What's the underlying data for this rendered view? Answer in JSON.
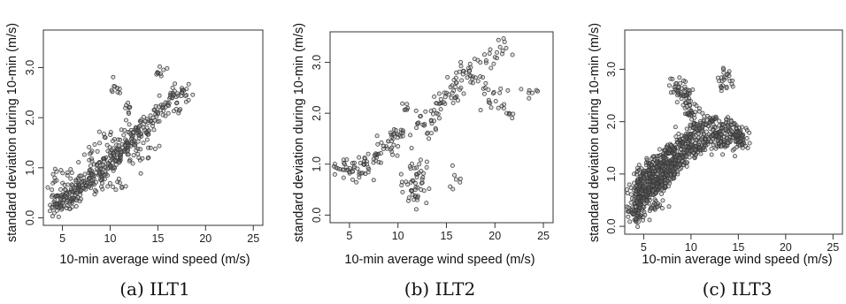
{
  "chart_data": [
    {
      "type": "scatter",
      "caption": "(a) ILT1",
      "xlabel": "10-min average wind speed (m/s)",
      "ylabel": "standard deviation during 10-min (m/s)",
      "xlim": [
        3,
        26
      ],
      "ylim": [
        -0.15,
        3.75
      ],
      "xticks": [
        5,
        10,
        15,
        20,
        25
      ],
      "yticks": [
        0.0,
        1.0,
        2.0,
        3.0
      ],
      "ytick_labels": [
        "0.0",
        "1.0",
        "2.0",
        "3.0"
      ],
      "series": [
        {
          "marker": "open-circle",
          "points": [
            [
              4.0,
              0.2
            ],
            [
              4.2,
              0.35
            ],
            [
              4.5,
              0.28
            ],
            [
              4.8,
              0.4
            ],
            [
              5.0,
              0.3
            ],
            [
              5.2,
              0.45
            ],
            [
              5.5,
              0.35
            ],
            [
              5.8,
              0.5
            ],
            [
              6.0,
              0.4
            ],
            [
              6.2,
              0.55
            ],
            [
              6.5,
              0.5
            ],
            [
              6.8,
              0.62
            ],
            [
              7.0,
              0.55
            ],
            [
              7.3,
              0.7
            ],
            [
              7.5,
              0.65
            ],
            [
              7.8,
              0.8
            ],
            [
              8.0,
              0.7
            ],
            [
              8.3,
              0.85
            ],
            [
              8.5,
              0.9
            ],
            [
              8.8,
              0.95
            ],
            [
              9.0,
              0.85
            ],
            [
              9.3,
              1.05
            ],
            [
              9.5,
              1.0
            ],
            [
              9.8,
              1.1
            ],
            [
              10.0,
              1.05
            ],
            [
              10.3,
              1.2
            ],
            [
              10.5,
              1.15
            ],
            [
              10.8,
              1.3
            ],
            [
              11.0,
              1.25
            ],
            [
              11.3,
              1.4
            ],
            [
              11.5,
              1.35
            ],
            [
              11.8,
              1.5
            ],
            [
              12.0,
              1.45
            ],
            [
              12.3,
              1.6
            ],
            [
              12.5,
              1.55
            ],
            [
              12.8,
              1.7
            ],
            [
              13.0,
              1.65
            ],
            [
              13.5,
              1.8
            ],
            [
              14.0,
              1.9
            ],
            [
              14.5,
              2.0
            ],
            [
              15.0,
              2.1
            ],
            [
              15.5,
              2.2
            ],
            [
              16.0,
              2.3
            ],
            [
              16.5,
              2.4
            ],
            [
              17.0,
              2.3
            ],
            [
              17.5,
              2.5
            ],
            [
              18.0,
              2.45
            ],
            [
              15.0,
              2.9
            ],
            [
              10.5,
              2.62
            ],
            [
              9.5,
              1.6
            ],
            [
              11.0,
              0.7
            ],
            [
              13.0,
              1.2
            ],
            [
              8.0,
              1.3
            ],
            [
              12.0,
              2.2
            ],
            [
              14.0,
              1.4
            ],
            [
              6.0,
              0.9
            ],
            [
              4.2,
              0.8
            ]
          ]
        }
      ]
    },
    {
      "type": "scatter",
      "caption": "(b) ILT2",
      "xlabel": "10-min average wind speed (m/s)",
      "ylabel": "standard deviation during 10-min (m/s)",
      "xlim": [
        3,
        26
      ],
      "ylim": [
        -0.15,
        3.6
      ],
      "xticks": [
        5,
        10,
        15,
        20,
        25
      ],
      "yticks": [
        0.0,
        1.0,
        2.0,
        3.0
      ],
      "ytick_labels": [
        "0.0",
        "1.0",
        "2.0",
        "3.0"
      ],
      "series": [
        {
          "marker": "open-circle",
          "points": [
            [
              4.0,
              0.9
            ],
            [
              4.5,
              1.0
            ],
            [
              5.0,
              0.85
            ],
            [
              5.5,
              0.95
            ],
            [
              6.0,
              0.8
            ],
            [
              6.5,
              1.05
            ],
            [
              7.0,
              0.9
            ],
            [
              7.5,
              1.1
            ],
            [
              8.0,
              1.2
            ],
            [
              8.5,
              1.3
            ],
            [
              9.0,
              1.45
            ],
            [
              9.5,
              1.5
            ],
            [
              10.0,
              1.35
            ],
            [
              10.5,
              1.55
            ],
            [
              11.0,
              0.6
            ],
            [
              11.5,
              0.4
            ],
            [
              11.8,
              0.5
            ],
            [
              12.0,
              0.8
            ],
            [
              12.2,
              1.0
            ],
            [
              12.5,
              0.7
            ],
            [
              13.0,
              1.6
            ],
            [
              13.5,
              1.8
            ],
            [
              14.0,
              2.0
            ],
            [
              14.5,
              2.2
            ],
            [
              15.0,
              2.4
            ],
            [
              15.5,
              2.3
            ],
            [
              16.0,
              2.6
            ],
            [
              16.5,
              2.5
            ],
            [
              17.0,
              2.8
            ],
            [
              17.5,
              2.9
            ],
            [
              18.0,
              2.7
            ],
            [
              18.5,
              3.0
            ],
            [
              19.0,
              2.5
            ],
            [
              19.5,
              2.2
            ],
            [
              20.0,
              3.1
            ],
            [
              20.5,
              2.4
            ],
            [
              21.0,
              3.4
            ],
            [
              21.5,
              2.0
            ],
            [
              23.5,
              2.4
            ],
            [
              11.0,
              2.1
            ],
            [
              12.0,
              1.8
            ],
            [
              16.0,
              0.7
            ],
            [
              12.0,
              0.3
            ]
          ]
        }
      ]
    },
    {
      "type": "scatter",
      "caption": "(c) ILT3",
      "xlabel": "10-min average wind speed (m/s)",
      "ylabel": "standard deviation during 10-min (m/s)",
      "xlim": [
        3,
        26
      ],
      "ylim": [
        -0.15,
        3.75
      ],
      "xticks": [
        5,
        10,
        15,
        20,
        25
      ],
      "yticks": [
        0.0,
        1.0,
        2.0,
        3.0
      ],
      "ytick_labels": [
        "0.0",
        "1.0",
        "2.0",
        "3.0"
      ],
      "series": [
        {
          "marker": "open-circle",
          "points": [
            [
              4.0,
              0.3
            ],
            [
              4.2,
              0.6
            ],
            [
              4.4,
              0.9
            ],
            [
              4.6,
              0.45
            ],
            [
              4.8,
              0.75
            ],
            [
              5.0,
              0.55
            ],
            [
              5.2,
              1.0
            ],
            [
              5.4,
              0.65
            ],
            [
              5.6,
              0.85
            ],
            [
              5.8,
              1.1
            ],
            [
              6.0,
              0.7
            ],
            [
              6.2,
              0.95
            ],
            [
              6.4,
              1.15
            ],
            [
              6.6,
              0.8
            ],
            [
              6.8,
              1.2
            ],
            [
              7.0,
              0.9
            ],
            [
              7.2,
              1.3
            ],
            [
              7.4,
              1.0
            ],
            [
              7.6,
              1.4
            ],
            [
              7.8,
              1.1
            ],
            [
              8.0,
              1.2
            ],
            [
              8.3,
              1.5
            ],
            [
              8.6,
              1.25
            ],
            [
              9.0,
              1.6
            ],
            [
              9.3,
              1.35
            ],
            [
              9.6,
              1.7
            ],
            [
              10.0,
              1.45
            ],
            [
              10.4,
              1.8
            ],
            [
              10.8,
              1.5
            ],
            [
              11.2,
              1.9
            ],
            [
              11.6,
              1.6
            ],
            [
              12.0,
              2.0
            ],
            [
              12.5,
              1.7
            ],
            [
              13.0,
              1.8
            ],
            [
              13.5,
              1.65
            ],
            [
              14.0,
              1.9
            ],
            [
              14.5,
              1.7
            ],
            [
              15.0,
              1.6
            ],
            [
              15.5,
              1.75
            ],
            [
              8.5,
              2.6
            ],
            [
              9.5,
              2.5
            ],
            [
              13.5,
              2.8
            ],
            [
              10.0,
              2.2
            ],
            [
              4.5,
              0.2
            ],
            [
              6.0,
              0.4
            ]
          ]
        }
      ]
    }
  ]
}
